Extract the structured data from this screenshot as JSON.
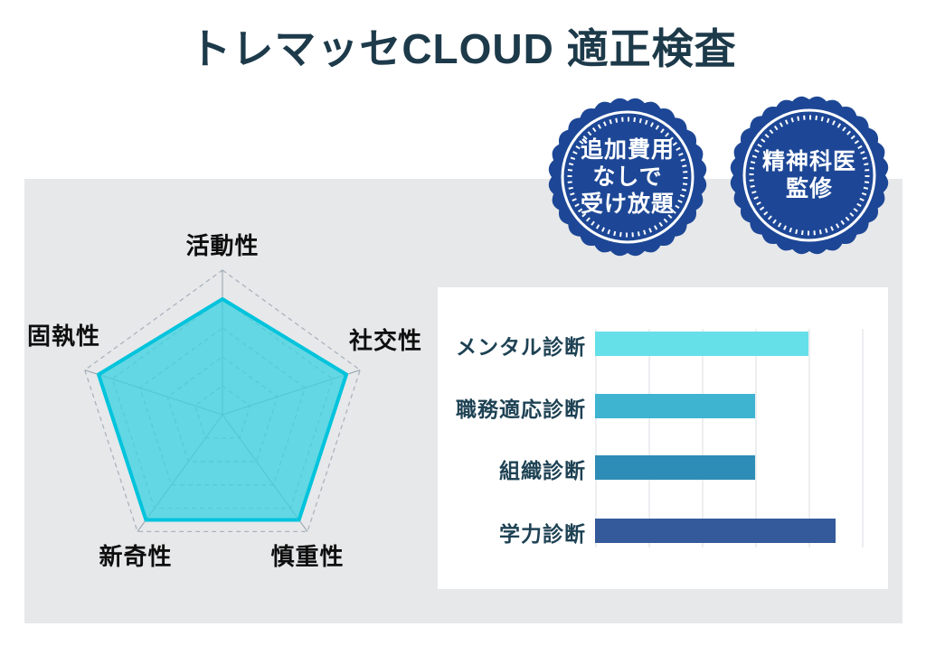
{
  "title": "トレマッセCLOUD 適正検査",
  "badges": [
    {
      "name": "no-extra-cost",
      "lines": [
        "追加費用",
        "なしで",
        "受け放題"
      ]
    },
    {
      "name": "psychiatrist-supervised",
      "lines": [
        "精神科医",
        "監修"
      ]
    }
  ],
  "colors": {
    "title_text": "#1d3a4a",
    "badge_blue": "#1d4796",
    "panel_gray": "#e7e8ea",
    "radar_fill": "#3ed2e0",
    "radar_stroke": "#00c3dc",
    "bar_label_text": "#1e4254"
  },
  "chart_data": [
    {
      "type": "radar",
      "categories": [
        "活動性",
        "社交性",
        "慎重性",
        "新奇性",
        "固執性"
      ],
      "values": [
        4.0,
        4.5,
        4.5,
        4.5,
        4.5
      ],
      "max": 5,
      "rings": 5,
      "grid": "dashed pentagons",
      "legend": false
    },
    {
      "type": "bar",
      "orientation": "horizontal",
      "categories": [
        "メンタル診断",
        "職務適応診断",
        "組織診断",
        "学力診断"
      ],
      "values": [
        4,
        3,
        3,
        4.5
      ],
      "colors": [
        "#66e0e8",
        "#3eb4d1",
        "#2e8db6",
        "#345a9b"
      ],
      "xlim": [
        0,
        5
      ],
      "gridlines": [
        0,
        1,
        2,
        3,
        4,
        5
      ],
      "legend": false,
      "title": ""
    }
  ]
}
